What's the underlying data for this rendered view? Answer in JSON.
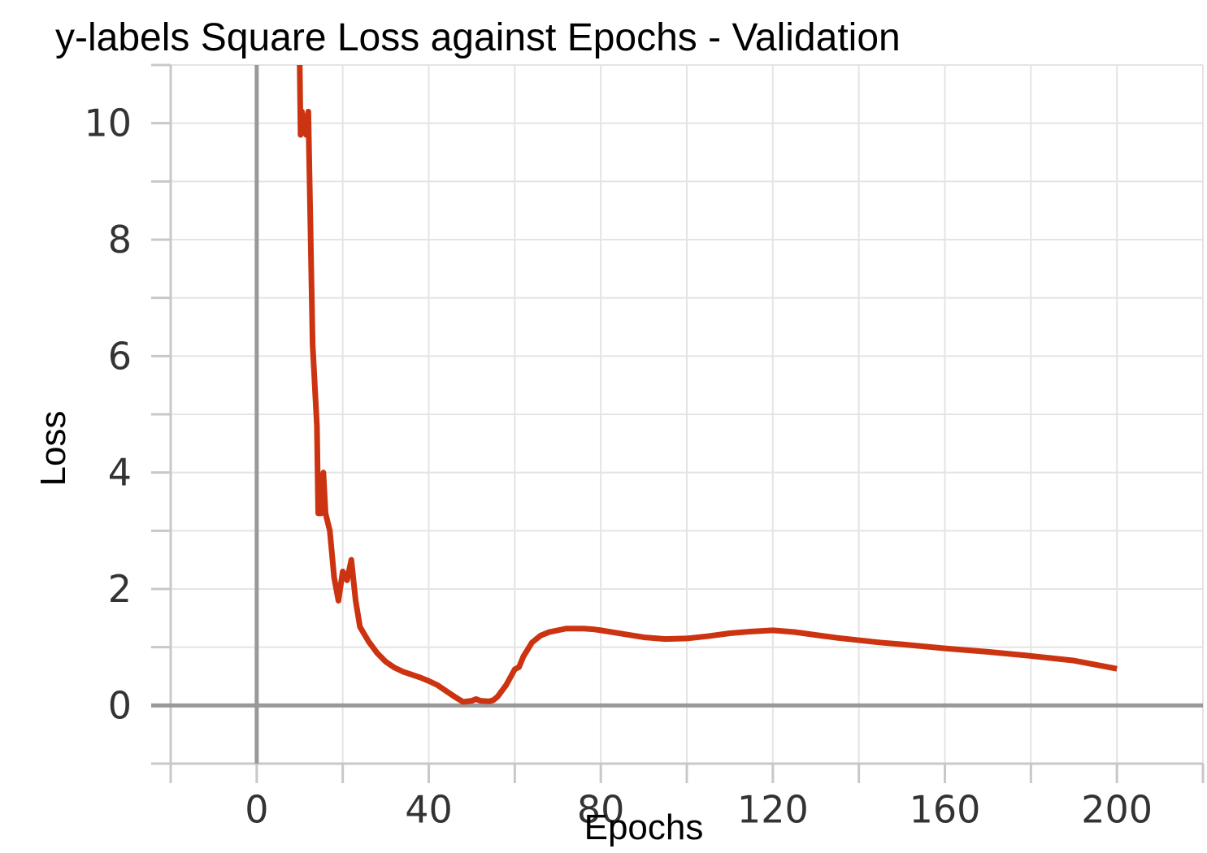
{
  "chart_data": {
    "type": "line",
    "title": "y-labels Square Loss against Epochs - Validation",
    "xlabel": "Epochs",
    "ylabel": "Loss",
    "xlim": [
      -20,
      220
    ],
    "ylim": [
      -1,
      11
    ],
    "x_ticks": [
      0,
      40,
      80,
      120,
      160,
      200
    ],
    "x_tick_labels": [
      "0",
      "40",
      "80",
      "120",
      "160",
      "200"
    ],
    "y_ticks": [
      0,
      2,
      4,
      6,
      8,
      10
    ],
    "y_tick_labels": [
      "0",
      "2",
      "4",
      "6",
      "8",
      "10"
    ],
    "grid": true,
    "line_color": "#cc3311",
    "series": [
      {
        "x": [
          10,
          10.2,
          10.5,
          11.5,
          12,
          13,
          14,
          14.3,
          15,
          15.5,
          16,
          17,
          18,
          19,
          20,
          21,
          22,
          23,
          24,
          26,
          28,
          30,
          32,
          34,
          36,
          38,
          40,
          42,
          44,
          46,
          48,
          50,
          51,
          52,
          54,
          55,
          56,
          58,
          60,
          61,
          62,
          64,
          66,
          68,
          70,
          72,
          74,
          76,
          78,
          80,
          85,
          90,
          95,
          100,
          105,
          110,
          115,
          120,
          125,
          130,
          135,
          140,
          145,
          150,
          160,
          170,
          180,
          190,
          200
        ],
        "y": [
          11,
          9.8,
          10.2,
          9.8,
          10.2,
          6.2,
          4.8,
          3.3,
          3.3,
          4.0,
          3.3,
          3.0,
          2.2,
          1.8,
          2.3,
          2.15,
          2.5,
          1.8,
          1.35,
          1.1,
          0.9,
          0.75,
          0.65,
          0.58,
          0.53,
          0.48,
          0.42,
          0.35,
          0.25,
          0.15,
          0.06,
          0.08,
          0.11,
          0.08,
          0.07,
          0.09,
          0.15,
          0.35,
          0.62,
          0.66,
          0.84,
          1.08,
          1.2,
          1.26,
          1.29,
          1.32,
          1.32,
          1.32,
          1.31,
          1.29,
          1.23,
          1.17,
          1.14,
          1.15,
          1.19,
          1.24,
          1.27,
          1.29,
          1.26,
          1.21,
          1.16,
          1.12,
          1.08,
          1.05,
          0.98,
          0.92,
          0.85,
          0.77,
          0.63
        ]
      }
    ]
  }
}
